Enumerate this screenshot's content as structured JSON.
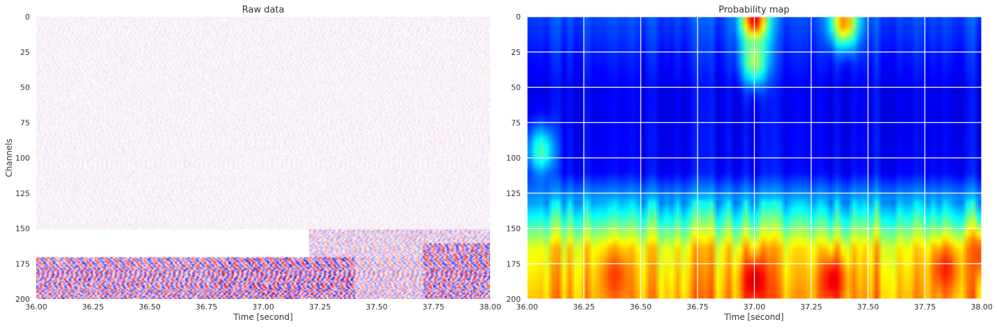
{
  "chart_data": [
    {
      "type": "heatmap",
      "title": "Raw data",
      "xlabel": "Time [second]",
      "ylabel": "Channels",
      "xlim": [
        36.0,
        38.0
      ],
      "ylim": [
        200,
        0
      ],
      "x_ticks": [
        "36.00",
        "36.25",
        "36.50",
        "36.75",
        "37.00",
        "37.25",
        "37.50",
        "37.75",
        "38.00"
      ],
      "y_ticks": [
        "0",
        "25",
        "50",
        "75",
        "100",
        "125",
        "150",
        "175",
        "200"
      ],
      "colormap": "seismic (blue-white-red)",
      "grid": false,
      "bands": [
        {
          "channels": [
            0,
            150
          ],
          "time": [
            36.0,
            38.0
          ],
          "amplitude": 0.12
        },
        {
          "channels": [
            150,
            170
          ],
          "time": [
            37.2,
            38.0
          ],
          "amplitude": 0.45
        },
        {
          "channels": [
            170,
            200
          ],
          "time": [
            36.0,
            36.8
          ],
          "amplitude": 0.9
        },
        {
          "channels": [
            170,
            200
          ],
          "time": [
            36.8,
            37.4
          ],
          "amplitude": 1.0
        },
        {
          "channels": [
            170,
            200
          ],
          "time": [
            37.4,
            37.7
          ],
          "amplitude": 0.55
        },
        {
          "channels": [
            160,
            200
          ],
          "time": [
            37.7,
            38.0
          ],
          "amplitude": 0.95
        }
      ]
    },
    {
      "type": "heatmap",
      "title": "Probability map",
      "xlabel": "Time [second]",
      "ylabel": "",
      "xlim": [
        36.0,
        38.0
      ],
      "ylim": [
        200,
        0
      ],
      "x_ticks": [
        "36.00",
        "36.25",
        "36.50",
        "36.75",
        "37.00",
        "37.25",
        "37.50",
        "37.75",
        "38.00"
      ],
      "y_ticks": [
        "0",
        "25",
        "50",
        "75",
        "100",
        "125",
        "150",
        "175",
        "200"
      ],
      "colormap": "jet",
      "grid": true,
      "value_range": [
        0,
        1
      ],
      "baseline": [
        {
          "channel": 0,
          "value": 0.2
        },
        {
          "channel": 50,
          "value": 0.12
        },
        {
          "channel": 110,
          "value": 0.13
        },
        {
          "channel": 130,
          "value": 0.3
        },
        {
          "channel": 150,
          "value": 0.5
        },
        {
          "channel": 165,
          "value": 0.65
        },
        {
          "channel": 200,
          "value": 0.72
        }
      ],
      "hotspots": [
        {
          "time": 37.0,
          "channel": 0,
          "value": 0.9
        },
        {
          "time": 37.0,
          "channel": 30,
          "value": 0.55
        },
        {
          "time": 37.4,
          "channel": 2,
          "value": 0.75
        },
        {
          "time": 36.05,
          "channel": 95,
          "value": 0.45
        },
        {
          "time": 37.0,
          "channel": 188,
          "value": 0.92
        },
        {
          "time": 37.35,
          "channel": 188,
          "value": 0.9
        },
        {
          "time": 36.38,
          "channel": 185,
          "value": 0.82
        },
        {
          "time": 37.85,
          "channel": 180,
          "value": 0.85
        },
        {
          "time": 38.0,
          "channel": 170,
          "value": 0.8
        }
      ]
    }
  ]
}
